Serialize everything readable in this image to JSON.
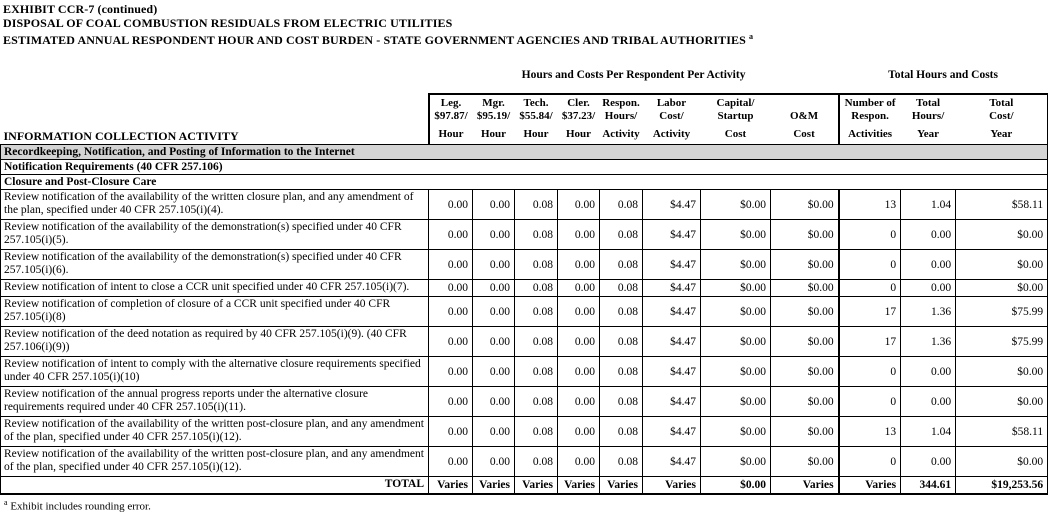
{
  "titles": [
    "EXHIBIT CCR-7 (continued)",
    "DISPOSAL OF COAL COMBUSTION RESIDUALS FROM ELECTRIC UTILITIES",
    "ESTIMATED ANNUAL RESPONDENT HOUR AND COST BURDEN - STATE GOVERNMENT AGENCIES AND TRIBAL AUTHORITIES"
  ],
  "title_superscript": "a",
  "group_headers": {
    "per_activity": "Hours and Costs Per Respondent Per Activity",
    "totals": "Total Hours and Costs"
  },
  "info_col_header": "INFORMATION COLLECTION ACTIVITY",
  "columns": [
    {
      "l1": "Leg.",
      "l2": "$97.87/",
      "l3": "Hour"
    },
    {
      "l1": "Mgr.",
      "l2": "$95.19/",
      "l3": "Hour"
    },
    {
      "l1": "Tech.",
      "l2": "$55.84/",
      "l3": "Hour"
    },
    {
      "l1": "Cler.",
      "l2": "$37.23/",
      "l3": "Hour"
    },
    {
      "l1": "Respon.",
      "l2": "Hours/",
      "l3": "Activity"
    },
    {
      "l1": "Labor",
      "l2": "Cost/",
      "l3": "Activity"
    },
    {
      "l1": "Capital/",
      "l2": "Startup",
      "l3": "Cost"
    },
    {
      "l1": "",
      "l2": "O&M",
      "l3": "Cost"
    },
    {
      "l1": "Number of",
      "l2": "Respon.",
      "l3": "Activities"
    },
    {
      "l1": "Total",
      "l2": "Hours/",
      "l3": "Year"
    },
    {
      "l1": "Total",
      "l2": "Cost/",
      "l3": "Year"
    }
  ],
  "sections": [
    "Recordkeeping, Notification, and Posting of Information to the Internet",
    "Notification Requirements (40 CFR 257.106)",
    "Closure and Post-Closure Care"
  ],
  "rows": [
    {
      "activity": "Review notification of the availability of the written closure plan, and any amendment of the plan, specified under 40 CFR 257.105(i)(4).",
      "values": [
        "0.00",
        "0.00",
        "0.08",
        "0.00",
        "0.08",
        "$4.47",
        "$0.00",
        "$0.00",
        "13",
        "1.04",
        "$58.11"
      ]
    },
    {
      "activity": "Review notification of the availability of the demonstration(s) specified under 40 CFR 257.105(i)(5).",
      "values": [
        "0.00",
        "0.00",
        "0.08",
        "0.00",
        "0.08",
        "$4.47",
        "$0.00",
        "$0.00",
        "0",
        "0.00",
        "$0.00"
      ]
    },
    {
      "activity": "Review notification of the availability of the demonstration(s) specified under 40 CFR 257.105(i)(6).",
      "values": [
        "0.00",
        "0.00",
        "0.08",
        "0.00",
        "0.08",
        "$4.47",
        "$0.00",
        "$0.00",
        "0",
        "0.00",
        "$0.00"
      ]
    },
    {
      "activity": "Review notification of intent to close a CCR unit specified under 40 CFR 257.105(i)(7).",
      "values": [
        "0.00",
        "0.00",
        "0.08",
        "0.00",
        "0.08",
        "$4.47",
        "$0.00",
        "$0.00",
        "0",
        "0.00",
        "$0.00"
      ]
    },
    {
      "activity": "Review notification of completion of closure of a CCR unit specified under 40 CFR 257.105(i)(8)",
      "values": [
        "0.00",
        "0.00",
        "0.08",
        "0.00",
        "0.08",
        "$4.47",
        "$0.00",
        "$0.00",
        "17",
        "1.36",
        "$75.99"
      ]
    },
    {
      "activity": "Review notification of the deed notation as required by 40 CFR 257.105(i)(9).  (40 CFR 257.106(i)(9))",
      "values": [
        "0.00",
        "0.00",
        "0.08",
        "0.00",
        "0.08",
        "$4.47",
        "$0.00",
        "$0.00",
        "17",
        "1.36",
        "$75.99"
      ]
    },
    {
      "activity": "Review notification of intent to comply with the alternative closure requirements specified under 40 CFR 257.105(i)(10)",
      "values": [
        "0.00",
        "0.00",
        "0.08",
        "0.00",
        "0.08",
        "$4.47",
        "$0.00",
        "$0.00",
        "0",
        "0.00",
        "$0.00"
      ]
    },
    {
      "activity": "Review notification of the annual progress reports under the alternative closure requirements required under 40 CFR 257.105(i)(11).",
      "values": [
        "0.00",
        "0.00",
        "0.08",
        "0.00",
        "0.08",
        "$4.47",
        "$0.00",
        "$0.00",
        "0",
        "0.00",
        "$0.00"
      ]
    },
    {
      "activity": "Review notification of the availability of the written post-closure plan, and any amendment of the plan, specified under 40 CFR 257.105(i)(12).",
      "values": [
        "0.00",
        "0.00",
        "0.08",
        "0.00",
        "0.08",
        "$4.47",
        "$0.00",
        "$0.00",
        "13",
        "1.04",
        "$58.11"
      ]
    },
    {
      "activity": "Review notification of the availability of the written post-closure plan, and any amendment of the plan, specified under 40 CFR 257.105(i)(12).",
      "values": [
        "0.00",
        "0.00",
        "0.08",
        "0.00",
        "0.08",
        "$4.47",
        "$0.00",
        "$0.00",
        "0",
        "0.00",
        "$0.00"
      ]
    }
  ],
  "total_row": {
    "label": "TOTAL",
    "values": [
      "Varies",
      "Varies",
      "Varies",
      "Varies",
      "Varies",
      "Varies",
      "$0.00",
      "Varies",
      "Varies",
      "344.61",
      "$19,253.56"
    ]
  },
  "footnote": {
    "marker": "a",
    "text": "Exhibit includes rounding error."
  },
  "colors": {
    "section_band": "#d4d4d4",
    "border": "#000000"
  }
}
